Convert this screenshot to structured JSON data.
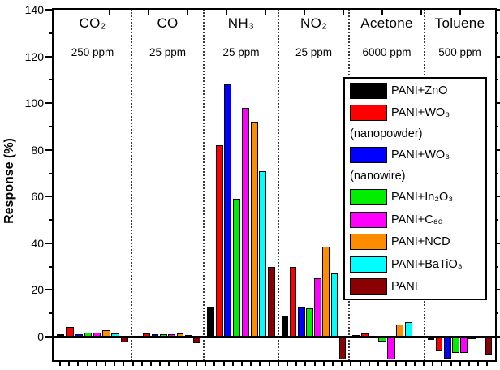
{
  "chart_data": {
    "type": "bar",
    "title": "",
    "xlabel": "",
    "ylabel": "Response (%)",
    "ylim": [
      -10,
      140
    ],
    "ytick_major": [
      0,
      20,
      40,
      60,
      80,
      100,
      120,
      140
    ],
    "ytick_minor": [
      10,
      30,
      50,
      70,
      90,
      110,
      130
    ],
    "grid": false,
    "legend_position": "inside-right",
    "categories": [
      "CO₂",
      "CO",
      "NH₃",
      "NO₂",
      "Acetone",
      "Toluene"
    ],
    "concentrations": [
      "250 ppm",
      "25 ppm",
      "25 ppm",
      "25 ppm",
      "6000 ppm",
      "500 ppm"
    ],
    "series": [
      {
        "name": "PANI+ZnO",
        "color": "#000000",
        "values": [
          1.2,
          0.3,
          13,
          9,
          0.8,
          -1.5
        ]
      },
      {
        "name": "PANI+WO₃ (nanopowder)",
        "color": "#ff0000",
        "values": [
          4,
          1.5,
          82,
          30,
          1.5,
          -6
        ]
      },
      {
        "name": "PANI+WO₃ (nanowire)",
        "color": "#0000ff",
        "values": [
          1.2,
          1,
          108,
          13,
          -0.7,
          -9.5
        ]
      },
      {
        "name": "PANI+In₂O₃",
        "color": "#00ee00",
        "values": [
          1.7,
          1,
          59,
          12,
          -2,
          -7
        ]
      },
      {
        "name": "PANI+C₆₀",
        "color": "#ff00ff",
        "values": [
          1.7,
          1,
          98,
          25,
          -9.7,
          -7
        ]
      },
      {
        "name": "PANI+NCD",
        "color": "#ff8c00",
        "values": [
          2.8,
          1.4,
          92,
          38.5,
          5.2,
          -1
        ]
      },
      {
        "name": "PANI+BaTiO₃",
        "color": "#00ffff",
        "values": [
          1.4,
          0.8,
          71,
          27,
          6.4,
          0
        ]
      },
      {
        "name": "PANI",
        "color": "#8b0000",
        "values": [
          -2.4,
          -2.8,
          30,
          -9.7,
          0,
          -7.5
        ]
      }
    ]
  },
  "axes": {
    "ylabel": "Response (%)"
  },
  "legend": {
    "rows": [
      {
        "type": "item",
        "color": "#000000",
        "label": "PANI+ZnO"
      },
      {
        "type": "item",
        "color": "#ff0000",
        "label": "PANI+WO₃"
      },
      {
        "type": "note",
        "label": "(nanopowder)"
      },
      {
        "type": "item",
        "color": "#0000ff",
        "label": "PANI+WO₃"
      },
      {
        "type": "note",
        "label": "(nanowire)"
      },
      {
        "type": "item",
        "color": "#00ee00",
        "label": "PANI+In₂O₃"
      },
      {
        "type": "item",
        "color": "#ff00ff",
        "label": "PANI+C₆₀"
      },
      {
        "type": "item",
        "color": "#ff8c00",
        "label": "PANI+NCD"
      },
      {
        "type": "item",
        "color": "#00ffff",
        "label": "PANI+BaTiO₃"
      },
      {
        "type": "item",
        "color": "#8b0000",
        "label": "PANI"
      }
    ]
  }
}
